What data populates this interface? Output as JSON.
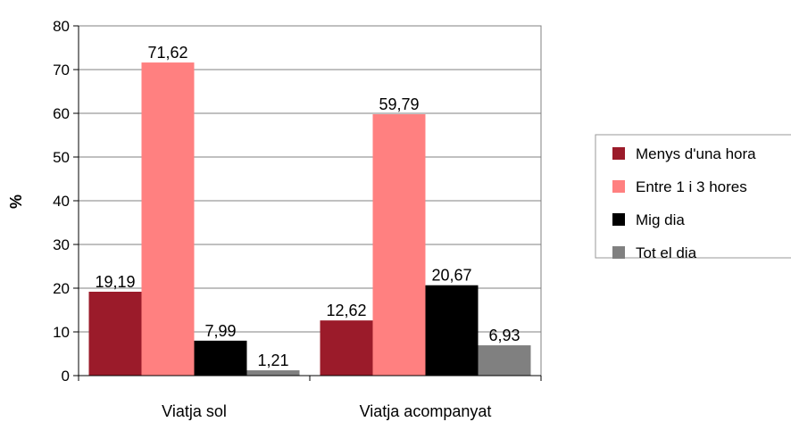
{
  "chart_data": {
    "type": "bar",
    "title": "",
    "xlabel": "",
    "ylabel": "%",
    "ylim": [
      0,
      80
    ],
    "yticks": [
      0,
      10,
      20,
      30,
      40,
      50,
      60,
      70,
      80
    ],
    "grid": true,
    "legend_position": "right",
    "categories": [
      "Viatja sol",
      "Viatja acompanyat"
    ],
    "series": [
      {
        "name": "Menys d'una hora",
        "color": "#9b1b2a",
        "values": [
          19.19,
          12.62
        ],
        "labels": [
          "19,19",
          "12,62"
        ]
      },
      {
        "name": "Entre 1 i 3 hores",
        "color": "#ff8080",
        "values": [
          71.62,
          59.79
        ],
        "labels": [
          "71,62",
          "59,79"
        ]
      },
      {
        "name": "Mig dia",
        "color": "#000000",
        "values": [
          7.99,
          20.67
        ],
        "labels": [
          "7,99",
          "20,67"
        ]
      },
      {
        "name": "Tot el dia",
        "color": "#808080",
        "values": [
          1.21,
          6.93
        ],
        "labels": [
          "1,21",
          "6,93"
        ]
      }
    ]
  }
}
